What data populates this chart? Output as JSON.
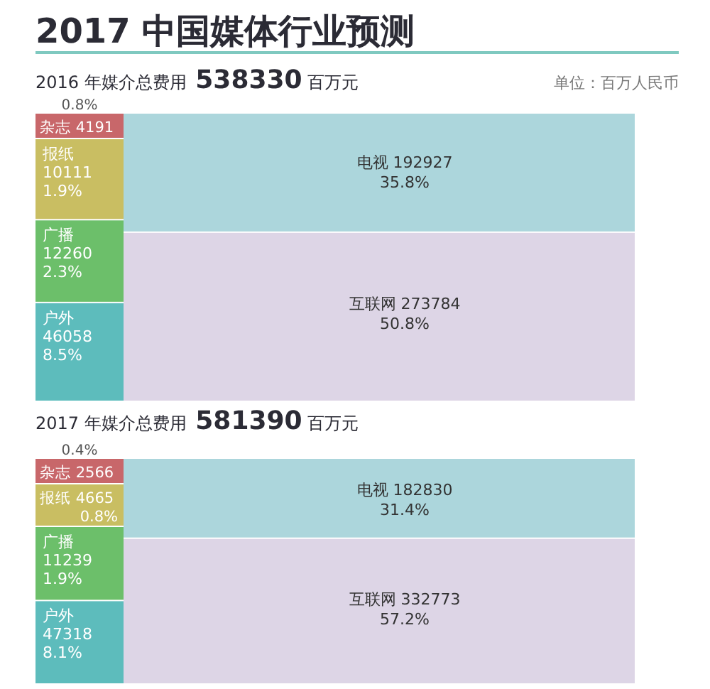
{
  "chart_data": [
    {
      "type": "other",
      "title": "2017 中国媒体行业预测",
      "subtitle": "2016 年媒介总费用 538330 百万元",
      "annotations": [
        "单位：百万人民币"
      ],
      "categories": [
        "杂志 4191",
        "报纸 10111",
        "广播 12260",
        "户外 46058",
        "电视 192927",
        "互联网 273784"
      ],
      "values": [
        0.8,
        1.9,
        2.3,
        8.5,
        35.8,
        50.8
      ],
      "value_labels": [
        "0.8%",
        "1.9%",
        "2.3%",
        "8.5%",
        "35.8%",
        "50.8%"
      ],
      "colors": [
        "#c8676a",
        "#c9be62",
        "#6cbf6a",
        "#5dbcbc",
        "#acd6dc",
        "#ddd5e6"
      ]
    },
    {
      "type": "other",
      "title": "2017 年媒介总费用 581390 百万元",
      "categories": [
        "杂志 2566",
        "报纸 4665",
        "广播 11239",
        "户外 47318",
        "电视 182830",
        "互联网 332773"
      ],
      "values": [
        0.4,
        0.8,
        1.9,
        8.1,
        31.4,
        57.2
      ],
      "value_labels": [
        "0.4%",
        "0.8%",
        "1.9%",
        "8.1%",
        "31.4%",
        "57.2%"
      ],
      "colors": [
        "#c8676a",
        "#c9be62",
        "#6cbf6a",
        "#5dbcbc",
        "#acd6dc",
        "#ddd5e6"
      ]
    }
  ]
}
